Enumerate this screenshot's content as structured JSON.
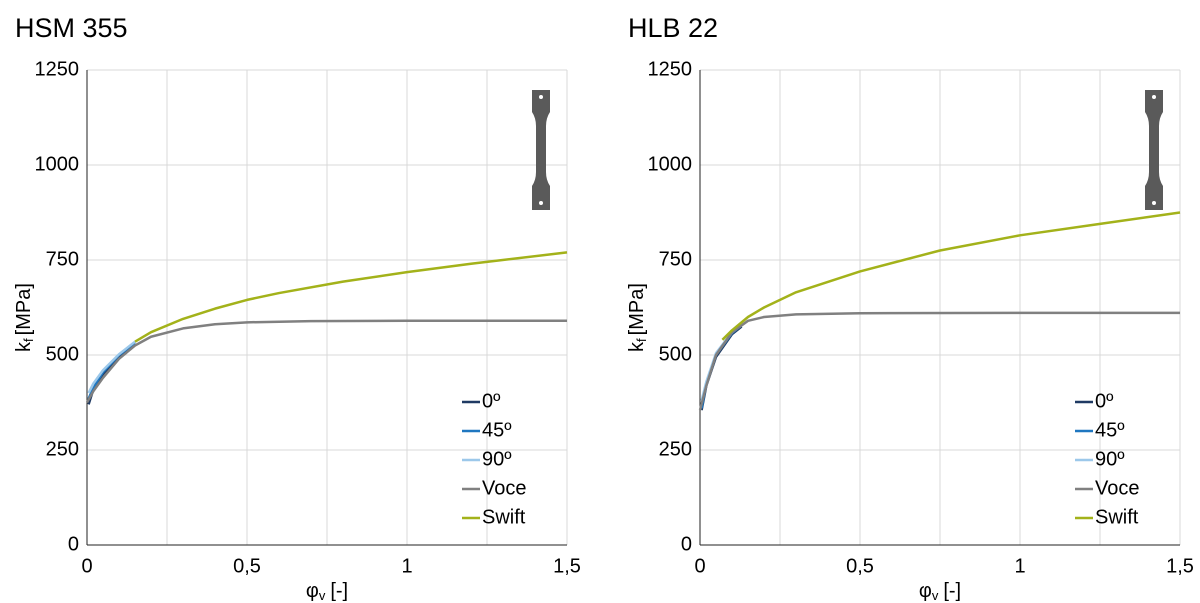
{
  "chart_data": [
    {
      "type": "line",
      "title": "HSM 355",
      "x_label": {
        "symbol": "φ",
        "subscript": "v",
        "unit": "[-]"
      },
      "y_label": {
        "symbol": "k",
        "subscript": "f",
        "unit": "[MPa]"
      },
      "xlim": [
        0,
        1.5
      ],
      "ylim": [
        0,
        1250
      ],
      "xticks": [
        0,
        {
          "value": 0.5,
          "label": "0,5"
        },
        1,
        {
          "value": 1.5,
          "label": "1,5"
        }
      ],
      "x_minor_grid": [
        0.25,
        0.75,
        1.25
      ],
      "yticks": [
        0,
        250,
        500,
        750,
        1000,
        1250
      ],
      "grid": true,
      "legend": "lower right",
      "series": [
        {
          "name": "0º",
          "color": "#1f3a63",
          "x": [
            0.005,
            0.02,
            0.05,
            0.1,
            0.15
          ],
          "values": [
            370,
            410,
            450,
            495,
            530
          ]
        },
        {
          "name": "45º",
          "color": "#1f77c0",
          "x": [
            0.005,
            0.02,
            0.05,
            0.1,
            0.15
          ],
          "values": [
            385,
            415,
            455,
            500,
            532
          ]
        },
        {
          "name": "90º",
          "color": "#9cc8ea",
          "x": [
            0.005,
            0.02,
            0.05,
            0.1,
            0.15
          ],
          "values": [
            400,
            425,
            460,
            502,
            535
          ]
        },
        {
          "name": "Voce",
          "color": "#808080",
          "x": [
            0,
            0.02,
            0.05,
            0.1,
            0.15,
            0.2,
            0.3,
            0.4,
            0.5,
            0.7,
            1.0,
            1.5
          ],
          "values": [
            375,
            405,
            440,
            490,
            525,
            548,
            570,
            581,
            586,
            589,
            590,
            590
          ]
        },
        {
          "name": "Swift",
          "color": "#a3b21a",
          "x": [
            0.15,
            0.2,
            0.3,
            0.4,
            0.5,
            0.6,
            0.8,
            1.0,
            1.2,
            1.5
          ],
          "values": [
            535,
            560,
            595,
            622,
            645,
            663,
            693,
            718,
            740,
            770
          ]
        }
      ]
    },
    {
      "type": "line",
      "title": "HLB 22",
      "x_label": {
        "symbol": "φ",
        "subscript": "v",
        "unit": "[-]"
      },
      "y_label": {
        "symbol": "k",
        "subscript": "f",
        "unit": "[MPa]"
      },
      "xlim": [
        0,
        1.5
      ],
      "ylim": [
        0,
        1250
      ],
      "xticks": [
        0,
        {
          "value": 0.5,
          "label": "0,5"
        },
        1,
        {
          "value": 1.5,
          "label": "1,5"
        }
      ],
      "x_minor_grid": [
        0.25,
        0.75,
        1.25
      ],
      "yticks": [
        0,
        250,
        500,
        750,
        1000,
        1250
      ],
      "grid": true,
      "legend": "lower right",
      "series": [
        {
          "name": "0º",
          "color": "#1f3a63",
          "x": [
            0.005,
            0.02,
            0.05,
            0.1,
            0.13
          ],
          "values": [
            355,
            420,
            495,
            555,
            575
          ]
        },
        {
          "name": "45º",
          "color": "#1f77c0",
          "x": [
            0.005,
            0.02,
            0.05,
            0.1,
            0.13
          ],
          "values": [
            360,
            425,
            500,
            558,
            578
          ]
        },
        {
          "name": "90º",
          "color": "#9cc8ea",
          "x": [
            0.005,
            0.02,
            0.05,
            0.1,
            0.13
          ],
          "values": [
            380,
            430,
            505,
            560,
            580
          ]
        },
        {
          "name": "Voce",
          "color": "#808080",
          "x": [
            0,
            0.02,
            0.05,
            0.1,
            0.15,
            0.2,
            0.3,
            0.5,
            1.0,
            1.5
          ],
          "values": [
            355,
            420,
            500,
            560,
            590,
            600,
            607,
            610,
            611,
            611
          ]
        },
        {
          "name": "Swift",
          "color": "#a3b21a",
          "x": [
            0.07,
            0.1,
            0.15,
            0.2,
            0.3,
            0.5,
            0.75,
            1.0,
            1.25,
            1.5
          ],
          "values": [
            540,
            565,
            600,
            625,
            665,
            720,
            775,
            815,
            845,
            875
          ]
        }
      ]
    }
  ]
}
